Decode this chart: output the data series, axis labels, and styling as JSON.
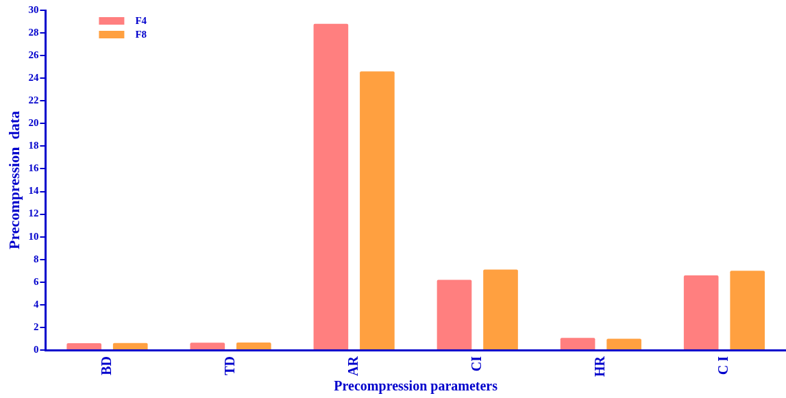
{
  "chart_data": {
    "type": "bar",
    "xlabel": "Precompression parameters",
    "ylabel": "Precompression  data",
    "categories": [
      "BD",
      "TD",
      "AR",
      "CI",
      "HR",
      "C I"
    ],
    "series": [
      {
        "name": "F4",
        "color": "#ff7f7f",
        "values": [
          0.6,
          0.65,
          28.8,
          6.2,
          1.07,
          6.6
        ]
      },
      {
        "name": "F8",
        "color": "#ffa040",
        "values": [
          0.62,
          0.67,
          24.6,
          7.1,
          1.0,
          7.0
        ]
      }
    ],
    "ylim": [
      0,
      30
    ],
    "yticks": [
      0,
      2,
      4,
      6,
      8,
      10,
      12,
      14,
      16,
      18,
      20,
      22,
      24,
      26,
      28,
      30
    ],
    "grid": false,
    "legend": "top left"
  }
}
